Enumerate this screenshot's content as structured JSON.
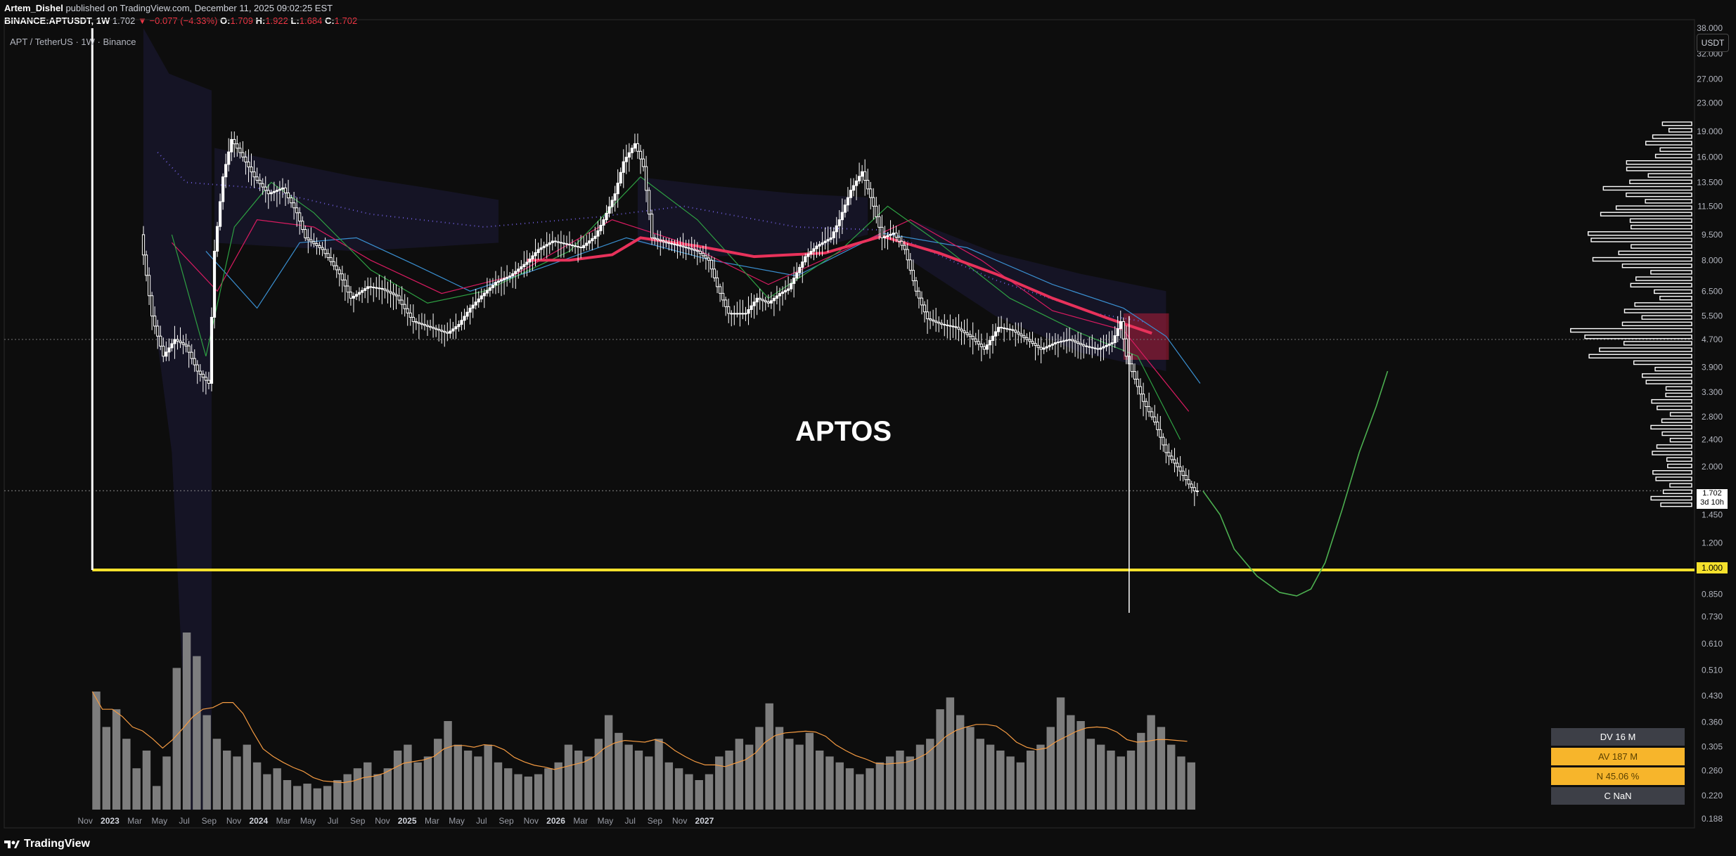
{
  "header": {
    "author": "Artem_Dishel",
    "published_text": "published on TradingView.com, December 11, 2025 09:02:25 EST",
    "symbol_line": "BINANCE:APTUSDT, 1W",
    "last": "1.702",
    "change": "▼ −0.077 (−4.33%)",
    "o_label": "O:",
    "o_value": "1.709",
    "h_label": "H:",
    "h_value": "1.922",
    "l_label": "L:",
    "l_value": "1.684",
    "c_label": "C:",
    "c_value": "1.702"
  },
  "symbol_label": "APT / TetherUS · 1W · Binance",
  "currency_badge": "USDT",
  "annotation_title": "APTOS",
  "last_price_tag": {
    "price": "1.702",
    "countdown": "3d 10h"
  },
  "level_tag": "1.000",
  "stats": [
    {
      "label": "DV 16 M",
      "style": "dark"
    },
    {
      "label": "AV 187 M",
      "style": "gold"
    },
    {
      "label": "N 45.06 %",
      "style": "gold"
    },
    {
      "label": "C  NaN",
      "style": "dark"
    }
  ],
  "footer": {
    "brand": "TradingView"
  },
  "colors": {
    "background": "#0d0d0d",
    "candle": "#ffffff",
    "ma_red": "#e8325b",
    "ma_blue": "#3a8fd0",
    "ma_green": "#2ea043",
    "ma_pink": "#d81b60",
    "dotted": "#6b5bd6",
    "level_line": "#f5e12c",
    "projection": "#4caf50",
    "volume": "#8a8a8a",
    "volume_ma": "#f59b42"
  },
  "chart_data": {
    "type": "candlestick",
    "price_scale": "log",
    "y_ticks": [
      "38.000",
      "32.000",
      "27.000",
      "23.000",
      "19.000",
      "16.000",
      "13.500",
      "11.500",
      "9.500",
      "8.000",
      "6.500",
      "5.500",
      "4.700",
      "3.900",
      "3.300",
      "2.800",
      "2.400",
      "2.000",
      "1.450",
      "1.200",
      "1.000",
      "0.850",
      "0.730",
      "0.610",
      "0.510",
      "0.430",
      "0.360",
      "0.305",
      "0.260",
      "0.220",
      "0.188"
    ],
    "x_ticks": [
      "Nov",
      "2023",
      "Mar",
      "May",
      "Jul",
      "Sep",
      "Nov",
      "2024",
      "Mar",
      "May",
      "Jul",
      "Sep",
      "Nov",
      "2025",
      "Mar",
      "May",
      "Jul",
      "Sep",
      "Nov",
      "2026",
      "Mar",
      "May",
      "Jul",
      "Sep",
      "Nov",
      "2027"
    ],
    "horizontal_level": 1.0,
    "last_price": 1.702,
    "crosshair_price": 4.7,
    "price_path": [
      [
        0,
        9.5
      ],
      [
        4,
        5.5
      ],
      [
        8,
        4.2
      ],
      [
        12,
        4.7
      ],
      [
        16,
        4.5
      ],
      [
        20,
        3.8
      ],
      [
        24,
        3.5
      ],
      [
        26,
        8.5
      ],
      [
        29,
        14
      ],
      [
        32,
        18
      ],
      [
        36,
        16
      ],
      [
        40,
        14
      ],
      [
        45,
        12.5
      ],
      [
        50,
        13
      ],
      [
        55,
        11
      ],
      [
        58,
        9.3
      ],
      [
        64,
        8.6
      ],
      [
        70,
        7.3
      ],
      [
        74,
        6.2
      ],
      [
        80,
        6.7
      ],
      [
        85,
        6.6
      ],
      [
        90,
        6.3
      ],
      [
        96,
        5.3
      ],
      [
        102,
        5.1
      ],
      [
        108,
        4.9
      ],
      [
        112,
        5.2
      ],
      [
        116,
        5.8
      ],
      [
        120,
        6.3
      ],
      [
        125,
        6.9
      ],
      [
        130,
        7.2
      ],
      [
        136,
        7.9
      ],
      [
        140,
        8.6
      ],
      [
        145,
        9.1
      ],
      [
        150,
        8.9
      ],
      [
        155,
        8.7
      ],
      [
        160,
        9.4
      ],
      [
        163,
        10.5
      ],
      [
        167,
        12.5
      ],
      [
        170,
        15.5
      ],
      [
        174,
        17.5
      ],
      [
        177,
        15
      ],
      [
        180,
        9.3
      ],
      [
        185,
        9.0
      ],
      [
        190,
        8.8
      ],
      [
        196,
        8.5
      ],
      [
        200,
        8.0
      ],
      [
        203,
        6.7
      ],
      [
        207,
        5.6
      ],
      [
        213,
        5.6
      ],
      [
        217,
        6.2
      ],
      [
        221,
        6.0
      ],
      [
        225,
        6.4
      ],
      [
        228,
        6.6
      ],
      [
        234,
        8.2
      ],
      [
        238,
        8.8
      ],
      [
        243,
        9.3
      ],
      [
        246,
        10.5
      ],
      [
        250,
        12.8
      ],
      [
        254,
        14.5
      ],
      [
        258,
        11.5
      ],
      [
        261,
        9.3
      ],
      [
        265,
        9.6
      ],
      [
        269,
        8.6
      ],
      [
        273,
        6.5
      ],
      [
        277,
        5.4
      ],
      [
        282,
        5.2
      ],
      [
        287,
        5.1
      ],
      [
        292,
        4.8
      ],
      [
        297,
        4.4
      ],
      [
        302,
        5.1
      ],
      [
        307,
        5.0
      ],
      [
        312,
        4.7
      ],
      [
        317,
        4.4
      ],
      [
        322,
        4.6
      ],
      [
        327,
        4.7
      ],
      [
        332,
        4.5
      ],
      [
        337,
        4.4
      ],
      [
        342,
        4.6
      ],
      [
        345,
        5.3
      ],
      [
        347,
        4.2
      ],
      [
        350,
        3.6
      ],
      [
        353,
        3.1
      ],
      [
        357,
        2.7
      ],
      [
        361,
        2.2
      ],
      [
        365,
        2.0
      ],
      [
        369,
        1.78
      ],
      [
        371,
        1.7
      ]
    ],
    "projection_path": [
      [
        373,
        1.7
      ],
      [
        379,
        1.45
      ],
      [
        384,
        1.15
      ],
      [
        392,
        0.96
      ],
      [
        400,
        0.86
      ],
      [
        406,
        0.84
      ],
      [
        411,
        0.88
      ],
      [
        416,
        1.05
      ],
      [
        422,
        1.5
      ],
      [
        428,
        2.2
      ],
      [
        434,
        3.0
      ],
      [
        438,
        3.8
      ]
    ],
    "volume_rel": [
      1.0,
      0.7,
      0.85,
      0.6,
      0.35,
      0.5,
      0.2,
      0.45,
      1.2,
      1.5,
      1.3,
      0.8,
      0.6,
      0.5,
      0.45,
      0.55,
      0.4,
      0.3,
      0.35,
      0.25,
      0.2,
      0.22,
      0.18,
      0.2,
      0.25,
      0.3,
      0.35,
      0.4,
      0.3,
      0.35,
      0.5,
      0.55,
      0.4,
      0.45,
      0.6,
      0.75,
      0.55,
      0.5,
      0.45,
      0.55,
      0.4,
      0.35,
      0.3,
      0.28,
      0.3,
      0.35,
      0.4,
      0.55,
      0.5,
      0.45,
      0.6,
      0.8,
      0.65,
      0.55,
      0.5,
      0.45,
      0.6,
      0.4,
      0.35,
      0.3,
      0.25,
      0.3,
      0.45,
      0.5,
      0.6,
      0.55,
      0.7,
      0.9,
      0.7,
      0.6,
      0.55,
      0.65,
      0.5,
      0.45,
      0.4,
      0.35,
      0.3,
      0.35,
      0.4,
      0.45,
      0.5,
      0.45,
      0.55,
      0.6,
      0.85,
      0.95,
      0.8,
      0.7,
      0.6,
      0.55,
      0.5,
      0.45,
      0.4,
      0.5,
      0.55,
      0.7,
      0.95,
      0.8,
      0.75,
      0.6,
      0.55,
      0.5,
      0.45,
      0.5,
      0.65,
      0.8,
      0.7,
      0.55,
      0.45,
      0.4
    ],
    "ma_lines": {
      "red_ma": [
        [
          135,
          8.0
        ],
        [
          150,
          8.0
        ],
        [
          165,
          8.3
        ],
        [
          175,
          9.3
        ],
        [
          195,
          8.8
        ],
        [
          215,
          8.2
        ],
        [
          240,
          8.4
        ],
        [
          260,
          9.4
        ],
        [
          280,
          8.4
        ],
        [
          300,
          7.3
        ],
        [
          320,
          6.2
        ],
        [
          340,
          5.4
        ],
        [
          355,
          4.9
        ]
      ],
      "blue_ma": [
        [
          22,
          8.5
        ],
        [
          40,
          5.8
        ],
        [
          55,
          9.0
        ],
        [
          75,
          9.3
        ],
        [
          95,
          7.8
        ],
        [
          115,
          6.5
        ],
        [
          140,
          7.6
        ],
        [
          170,
          9.3
        ],
        [
          200,
          8.0
        ],
        [
          230,
          7.2
        ],
        [
          260,
          9.6
        ],
        [
          290,
          8.7
        ],
        [
          320,
          6.8
        ],
        [
          345,
          5.8
        ],
        [
          360,
          4.8
        ],
        [
          372,
          3.5
        ]
      ],
      "green_ma": [
        [
          10,
          9.5
        ],
        [
          22,
          4.2
        ],
        [
          32,
          10
        ],
        [
          45,
          13.5
        ],
        [
          60,
          11
        ],
        [
          80,
          7.5
        ],
        [
          100,
          6.0
        ],
        [
          120,
          6.5
        ],
        [
          150,
          8.5
        ],
        [
          175,
          14
        ],
        [
          195,
          10.5
        ],
        [
          220,
          6.2
        ],
        [
          245,
          8.5
        ],
        [
          262,
          11.5
        ],
        [
          280,
          9.0
        ],
        [
          305,
          6.2
        ],
        [
          330,
          4.9
        ],
        [
          350,
          4.2
        ],
        [
          365,
          2.4
        ]
      ],
      "pink_ma": [
        [
          10,
          9.0
        ],
        [
          26,
          6.5
        ],
        [
          40,
          10.5
        ],
        [
          60,
          10.0
        ],
        [
          80,
          8.0
        ],
        [
          105,
          6.4
        ],
        [
          130,
          7.2
        ],
        [
          165,
          10.5
        ],
        [
          190,
          9.0
        ],
        [
          220,
          6.8
        ],
        [
          250,
          8.8
        ],
        [
          270,
          10.5
        ],
        [
          295,
          8.0
        ],
        [
          320,
          5.7
        ],
        [
          345,
          5.0
        ],
        [
          368,
          2.9
        ]
      ],
      "dotted_ma": [
        [
          5,
          16.5
        ],
        [
          15,
          13.5
        ],
        [
          40,
          13
        ],
        [
          80,
          10.9
        ],
        [
          120,
          10.0
        ],
        [
          160,
          10.7
        ],
        [
          190,
          11.5
        ],
        [
          230,
          10.0
        ],
        [
          260,
          9.8
        ],
        [
          300,
          7.0
        ],
        [
          335,
          5.6
        ],
        [
          352,
          5.3
        ]
      ]
    }
  }
}
